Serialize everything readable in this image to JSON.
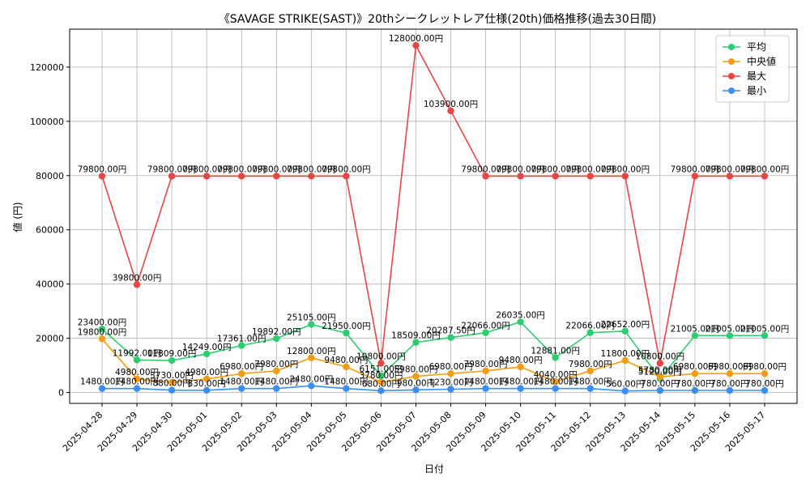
{
  "chart_data": {
    "type": "line",
    "title": "《SAVAGE STRIKE(SAST)》20thシークレットレア仕様(20th)価格推移(過去30日間)",
    "xlabel": "日付",
    "ylabel": "値 (円)",
    "categories": [
      "2025-04-28",
      "2025-04-29",
      "2025-04-30",
      "2025-05-01",
      "2025-05-02",
      "2025-05-03",
      "2025-05-04",
      "2025-05-05",
      "2025-05-06",
      "2025-05-07",
      "2025-05-08",
      "2025-05-09",
      "2025-05-10",
      "2025-05-11",
      "2025-05-12",
      "2025-05-13",
      "2025-05-14",
      "2025-05-15",
      "2025-05-16",
      "2025-05-17"
    ],
    "ylim": [
      -4000,
      134000
    ],
    "yticks": [
      0,
      20000,
      40000,
      60000,
      80000,
      100000,
      120000
    ],
    "ytick_labels": [
      "0",
      "20000",
      "40000",
      "60000",
      "80000",
      "100000",
      "120000"
    ],
    "grid": true,
    "legend_position": "top-right",
    "label_suffix": "円",
    "series": [
      {
        "name": "平均",
        "color": "#2ecc71",
        "values": [
          23400,
          11992,
          11809,
          14249,
          17361,
          19892,
          25105,
          21950,
          6151,
          18509,
          20287.5,
          22066,
          26035,
          12881,
          22066,
          22652,
          5120,
          21005,
          21005,
          21005
        ]
      },
      {
        "name": "中央値",
        "color": "#f39c12",
        "values": [
          19800,
          4980,
          3730,
          4980,
          6980,
          7980,
          12800,
          9480,
          3780,
          5980,
          6980,
          7980,
          9480,
          4040,
          7980,
          11800,
          5780,
          6980,
          6980,
          6980
        ]
      },
      {
        "name": "最大",
        "color": "#e84545",
        "values": [
          79800,
          39800,
          79800,
          79800,
          79800,
          79800,
          79800,
          79800,
          10800,
          128000,
          103900,
          79800,
          79800,
          79800,
          79800,
          79800,
          10800,
          79800,
          79800,
          79800
        ]
      },
      {
        "name": "最小",
        "color": "#3a8ef6",
        "values": [
          1480,
          1480,
          880,
          830,
          1480,
          1480,
          2480,
          1480,
          680,
          980,
          1230,
          1480,
          1480,
          1480,
          1480,
          560,
          780,
          780,
          780,
          780
        ]
      }
    ]
  }
}
